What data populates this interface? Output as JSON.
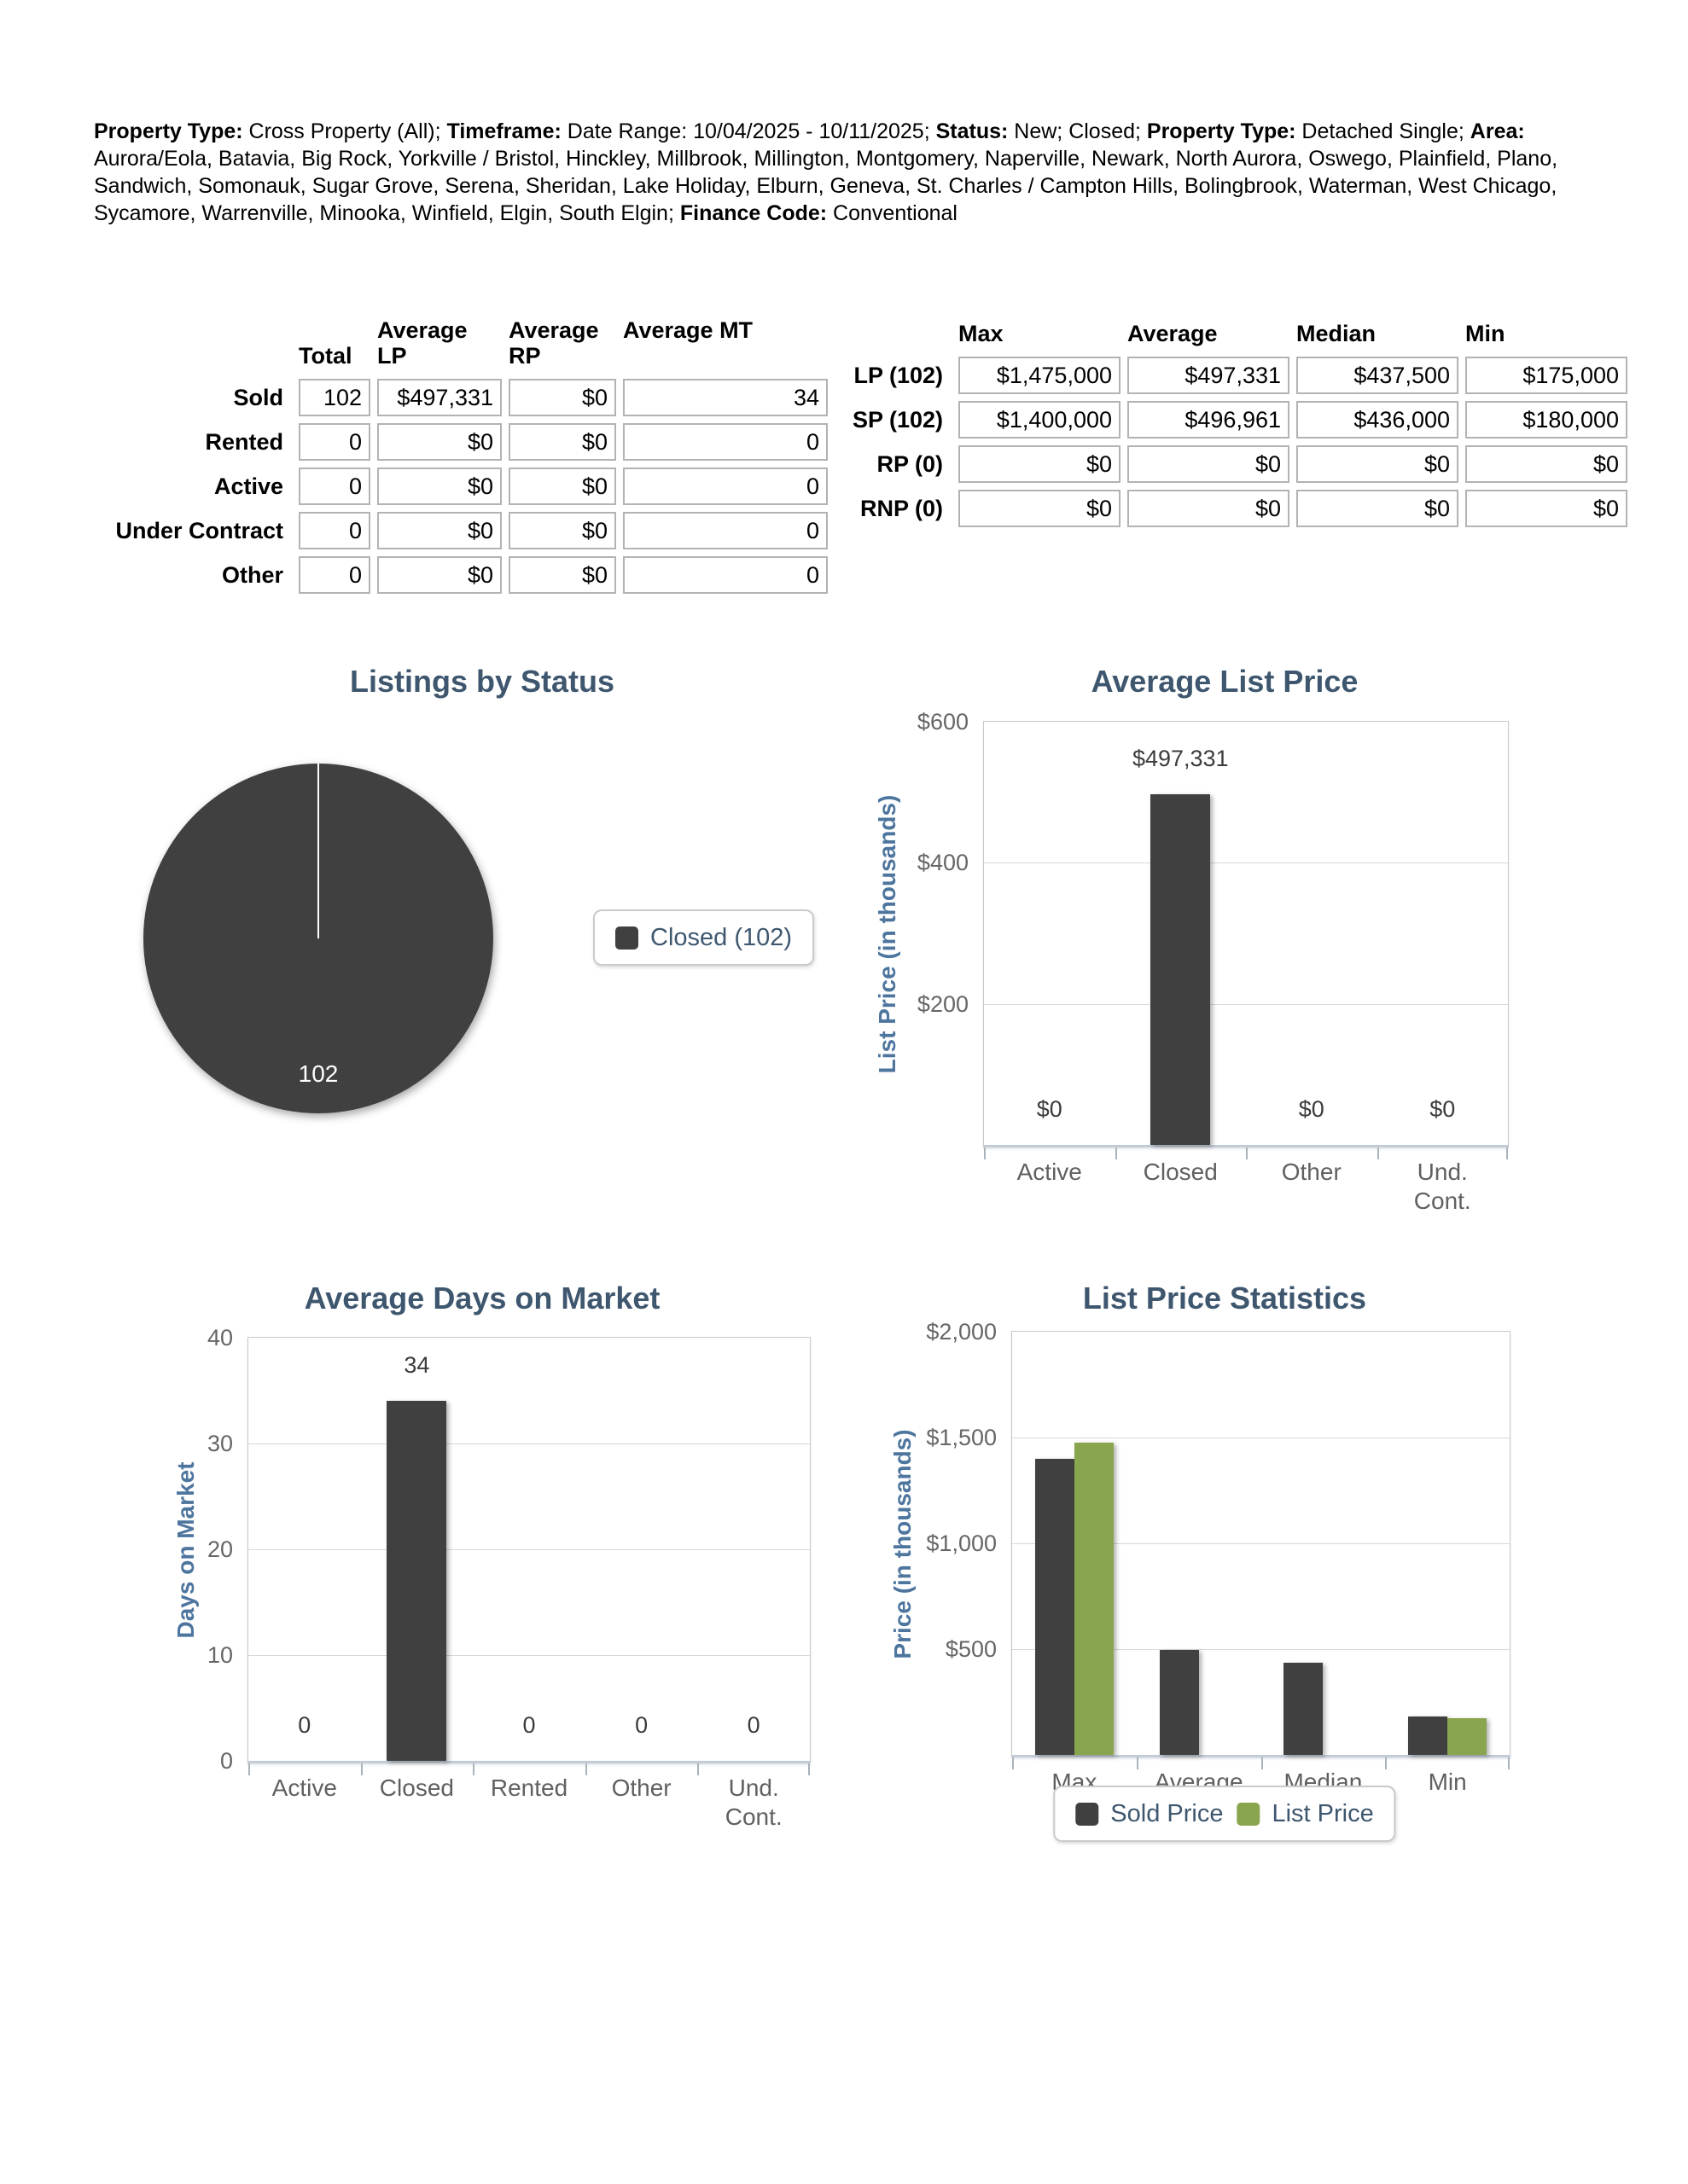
{
  "report_header": {
    "segments": [
      {
        "label": "Property Type:",
        "text": " Cross Property (All); "
      },
      {
        "label": "Timeframe:",
        "text": " Date Range: 10/04/2025 - 10/11/2025; "
      },
      {
        "label": "Status:",
        "text": " New; Closed; "
      },
      {
        "label": "Property Type:",
        "text": " Detached Single; "
      },
      {
        "label": "Area:",
        "text": " Aurora/Eola, Batavia, Big Rock, Yorkville / Bristol, Hinckley, Millbrook, Millington, Montgomery, Naperville, Newark, North Aurora, Oswego, Plainfield, Plano, Sandwich, Somonauk, Sugar Grove, Serena, Sheridan, Lake Holiday, Elburn, Geneva, St. Charles / Campton Hills, Bolingbrook, Waterman, West Chicago, Sycamore, Warrenville, Minooka, Winfield, Elgin, South Elgin; "
      },
      {
        "label": "Finance Code:",
        "text": " Conventional"
      }
    ]
  },
  "status_table": {
    "columns": [
      "Total",
      "Average\nLP",
      "Average\nRP",
      "Average MT"
    ],
    "rows": [
      {
        "label": "Sold",
        "values": [
          "102",
          "$497,331",
          "$0",
          "34"
        ]
      },
      {
        "label": "Rented",
        "values": [
          "0",
          "$0",
          "$0",
          "0"
        ]
      },
      {
        "label": "Active",
        "values": [
          "0",
          "$0",
          "$0",
          "0"
        ]
      },
      {
        "label": "Under Contract",
        "values": [
          "0",
          "$0",
          "$0",
          "0"
        ]
      },
      {
        "label": "Other",
        "values": [
          "0",
          "$0",
          "$0",
          "0"
        ]
      }
    ]
  },
  "price_table": {
    "columns": [
      "Max",
      "Average",
      "Median",
      "Min"
    ],
    "rows": [
      {
        "label": "LP (102)",
        "values": [
          "$1,475,000",
          "$497,331",
          "$437,500",
          "$175,000"
        ]
      },
      {
        "label": "SP (102)",
        "values": [
          "$1,400,000",
          "$496,961",
          "$436,000",
          "$180,000"
        ]
      },
      {
        "label": "RP (0)",
        "values": [
          "$0",
          "$0",
          "$0",
          "$0"
        ]
      },
      {
        "label": "RNP (0)",
        "values": [
          "$0",
          "$0",
          "$0",
          "$0"
        ]
      }
    ]
  },
  "colors": {
    "chart_title": "#3E576F",
    "axis_title": "#4D759E",
    "tick_label": "#666666",
    "value_label": "#3C3C3C",
    "bar_dark": "#404040",
    "bar_green": "#89A54E"
  },
  "chart_data": [
    {
      "id": "listings_by_status",
      "type": "pie",
      "title": "Listings by Status",
      "slices": [
        {
          "label": "Closed",
          "value": 102,
          "color": "#404040",
          "data_label": "102"
        }
      ],
      "legend": {
        "position": "right",
        "items": [
          {
            "label": "Closed (102)",
            "color": "#404040"
          }
        ]
      }
    },
    {
      "id": "average_list_price",
      "type": "bar",
      "title": "Average List Price",
      "ylabel": "List Price (in thousands)",
      "ylim": [
        0,
        600
      ],
      "grid": true,
      "yticks": [
        {
          "value": 600,
          "label": "$600"
        },
        {
          "value": 400,
          "label": "$400"
        },
        {
          "value": 200,
          "label": "$200"
        }
      ],
      "categories": [
        "Active",
        "Closed",
        "Other",
        "Und.\nCont."
      ],
      "values": [
        0,
        497.331,
        0,
        0
      ],
      "value_labels": [
        "$0",
        "$497,331",
        "$0",
        "$0"
      ],
      "bar_color": "#404040"
    },
    {
      "id": "average_days_on_market",
      "type": "bar",
      "title": "Average Days on Market",
      "ylabel": "Days on Market",
      "ylim": [
        0,
        40
      ],
      "grid": true,
      "yticks": [
        {
          "value": 40,
          "label": "40"
        },
        {
          "value": 30,
          "label": "30"
        },
        {
          "value": 20,
          "label": "20"
        },
        {
          "value": 10,
          "label": "10"
        },
        {
          "value": 0,
          "label": "0"
        }
      ],
      "categories": [
        "Active",
        "Closed",
        "Rented",
        "Other",
        "Und.\nCont."
      ],
      "values": [
        0,
        34,
        0,
        0,
        0
      ],
      "value_labels": [
        "0",
        "34",
        "0",
        "0",
        "0"
      ],
      "bar_color": "#404040"
    },
    {
      "id": "list_price_statistics",
      "type": "bar",
      "title": "List Price Statistics",
      "ylabel": "Price (in thousands)",
      "ylim": [
        0,
        2000
      ],
      "grid": true,
      "yticks": [
        {
          "value": 2000,
          "label": "$2,000"
        },
        {
          "value": 1500,
          "label": "$1,500"
        },
        {
          "value": 1000,
          "label": "$1,000"
        },
        {
          "value": 500,
          "label": "$500"
        }
      ],
      "categories": [
        "Max",
        "Average",
        "Median",
        "Min"
      ],
      "series": [
        {
          "name": "Sold Price",
          "color": "#404040",
          "values": [
            1400,
            496.961,
            436,
            180
          ]
        },
        {
          "name": "List Price",
          "color": "#89A54E",
          "values": [
            1475,
            null,
            null,
            175
          ]
        }
      ],
      "legend": {
        "position": "bottom",
        "items": [
          {
            "label": "Sold Price",
            "color": "#404040"
          },
          {
            "label": "List Price",
            "color": "#89A54E"
          }
        ]
      }
    }
  ]
}
